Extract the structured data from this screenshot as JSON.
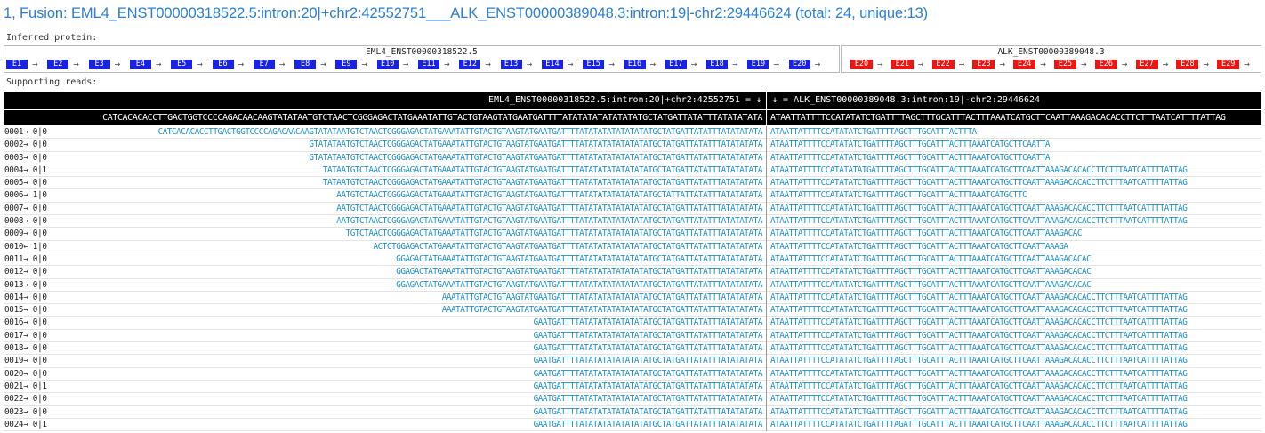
{
  "title": "1, Fusion: EML4_ENST00000318522.5:intron:20|+chr2:42552751___ALK_ENST00000389048.3:intron:19|-chr2:29446624 (total: 24, unique:13)",
  "inferred_label": "Inferred protein:",
  "supporting_label": "Supporting reads:",
  "gene_left": {
    "name": "EML4_ENST00000318522.5",
    "exons": [
      "E1",
      "E2",
      "E3",
      "E4",
      "E5",
      "E6",
      "E7",
      "E8",
      "E9",
      "E10",
      "E11",
      "E12",
      "E13",
      "E14",
      "E15",
      "E16",
      "E17",
      "E18",
      "E19",
      "E20"
    ],
    "color": "#1a22e6"
  },
  "gene_right": {
    "name": "ALK_ENST00000389048.3",
    "exons": [
      "E20",
      "E21",
      "E22",
      "E23",
      "E24",
      "E25",
      "E26",
      "E27",
      "E28",
      "E29"
    ],
    "color": "#ee1515"
  },
  "arrow_glyph": "→",
  "breakpoint_left": "EML4_ENST00000318522.5:intron:20|+chr2:42552751 = ↓",
  "breakpoint_right": "↓ = ALK_ENST00000389048.3:intron:19|-chr2:29446624",
  "ref_left": "CATCACACACCTTGACTGGTCCCCAGACAACAAGTATATAATGTCTAACTCGGGAGACTATGAAATATTGTACTGTAAGTATGAATGATTTTATATATATATATATATGCTATGATTATATTTATATATATA",
  "ref_right": "ATAATTATTTTCCATATATCTGATTTTAGCTTTGCATTTACTTTAAATCATGCTTCAATTAAAGACACACCTTCTTTAATCATTTTATTAG",
  "reads": [
    {
      "id": "0001→ 0|0",
      "left": "CATCACACACCTTGACTGGTCCCCAGACAACAAGTATATAATGTCTAACTCGGGAGACTATGAAATATTGTACTGTAAGTATGAATGATTTTATATATATATATATATGCTATGATTATATTTATATATATA",
      "right": "ATAATTATTTTCCATATATCTGATTTTAGCTTTGCATTTACTTTA"
    },
    {
      "id": "0002→ 0|0",
      "left": "GTATATAATGTCTAACTCGGGAGACTATGAAATATTGTACTGTAAGTATGAATGATTTTATATATATATATATATGCTATGATTATATTTATATATATA",
      "right": "ATAATTATTTTCCATATATCTGATTTTAGCTTTGCATTTACTTTAAATCATGCTTCAATTA"
    },
    {
      "id": "0003→ 0|0",
      "left": "GTATATAATGTCTAACTCGGGAGACTATGAAATATTGTACTGTAAGTATGAATGATTTTATATATATATATATATGCTATGATTATATTTATATATATA",
      "right": "ATAATTATTTTCCATATATCTGATTTTAGCTTTGCATTTACTTTAAATCATGCTTCAATTA"
    },
    {
      "id": "0004→ 0|1",
      "left": "TATAATGTCTAACTCGGGAGACTATGAAATATTGTACTGTAAGTATGAATGATTTTATATATATATATATATGCTATGATTATATTTATATATATA",
      "right": "ATAATTATTTTCCATATATATGATTTTAGCTTTGCATTTACTTTAAATCATGCTTCAATTAAAGACACACCTTCTTTAATCATTTTATTAG"
    },
    {
      "id": "0005→ 0|0",
      "left": "TATAATGTCTAACTCGGGAGACTATGAAATATTGTACTGTAAGTATGAATGATTTTATATATATATATATATGCTATGATTATATTTATATATATA",
      "right": "ATAATTATTTTCCATATATCTGATTTTAGCTTTGCATTTACTTTAAATCATGCTTCAATTAAAGACACACCTTCTTTAATCATTTTATTAG"
    },
    {
      "id": "0006→ 1|0",
      "left": "AATGTCTAACTCGGGAGACTATGAAATATTGTACTGTAAGTATGAATGATTTTATATATATATATATATGCTATTATTATATTTATATATATA",
      "right": "ATAATTATTTTCCATATATCTGATTTTAGCTTTGCATTTACTTTAAATCATGCTTC"
    },
    {
      "id": "0007→ 0|0",
      "left": "AATGTCTAACTCGGGAGACTATGAAATATTGTACTGTAAGTATGAATGATTTTATATATATATATATATGCTATGATTATATTTATATATATA",
      "right": "ATAATTATTTTCCATATATCTGATTTTAGCTTTGCATTTACTTTAAATCATGCTTCAATTAAAGACACACCTTCTTTAATCATTTTATTAG"
    },
    {
      "id": "0008→ 0|0",
      "left": "AATGTCTAACTCGGGAGACTATGAAATATTGTACTGTAAGTATGAATGATTTTATATATATATATATATGCTATGATTATATTTATATATATA",
      "right": "ATAATTATTTTCCATATATCTGATTTTAGCTTTGCATTTACTTTAAATCATGCTTCAATTAAAGACACACCTTCTTTAATCATTTTATTAG"
    },
    {
      "id": "0009→ 0|0",
      "left": "TGTCTAACTCGGGAGACTATGAAATATTGTACTGTAAGTATGAATGATTTTATATATATATATATATGCTATGATTATATTTATATATATA",
      "right": "ATAATTATTTTCCATATATCTGATTTTAGCTTTGCATTTACTTTAAATCATGCTTCAATTAAAGACAC"
    },
    {
      "id": "0010← 1|0",
      "left": "ACTCTGGAGACTATGAAATATTGTACTGTAAGTATGAATGATTTTATATATATATATATATGCTATGATTATATTTATATATATA",
      "right": "ATAATTATTTTCCATATATCTGATTTTAGCTTTGCATTTACTTTAAATCATGCTTCAATTAAAGA"
    },
    {
      "id": "0011→ 0|0",
      "left": "GGAGACTATGAAATATTGTACTGTAAGTATGAATGATTTTATATATATATATATATGCTATGATTATATTTATATATATA",
      "right": "ATAATTATTTTCCATATATCTGATTTTAGCTTTGCATTTACTTTAAATCATGCTTCAATTAAAGACACAC"
    },
    {
      "id": "0012→ 0|0",
      "left": "GGAGACTATGAAATATTGTACTGTAAGTATGAATGATTTTATATATATATATATATGCTATGATTATATTTATATATATA",
      "right": "ATAATTATTTTCCATATATCTGATTTTAGCTTTGCATTTACTTTAAATCATGCTTCAATTAAAGACACAC"
    },
    {
      "id": "0013→ 0|0",
      "left": "GGAGACTATGAAATATTGTACTGTAAGTATGAATGATTTTATATATATATATATATGCTATGATTATATTTATATATATA",
      "right": "ATAATTATTTTCCATATATCTGATTTTAGCTTTGCATTTACTTTAAATCATGCTTCAATTAAAGACACAC"
    },
    {
      "id": "0014→ 0|0",
      "left": "AAATATTGTACTGTAAGTATGAATGATTTTATATATATATATATATGCTATGATTATATTTATATATATA",
      "right": "ATAATTATTTTCCATATATCTGATTTTAGCTTTGCATTTACTTTAAATCATGCTTCAATTAAAGACACACCTTCTTTAATCATTTTATTAG"
    },
    {
      "id": "0015→ 0|0",
      "left": "AAATATTGTACTGTAAGTATGAATGATTTTATATATATATATATATGCTATGATTATATTTATATATATA",
      "right": "ATAATTATTTTCCATATATCTGATTTTAGCTTTGCATTTACTTTAAATCATGCTTCAATTAAAGACACACCTTCTTTAATCATTTTATTAG"
    },
    {
      "id": "0016→ 0|0",
      "left": "GAATGATTTTATATATATATATATATGCTATGATTATATTTATATATATA",
      "right": "ATAATTATTTTCCATATATCTGATTTTAGCTTTGCATTTACTTTAAATCATGCTTCAATTAAAGACACACCTTCTTTAATCATTTTATTAG"
    },
    {
      "id": "0017→ 0|0",
      "left": "GAATGATTTTATATATATATATATATGCTATGATTATATTTATATATATA",
      "right": "ATAATTATTTTCCATATATCTGATTTTAGCTTTGCATTTACTTTAAATCATGCTTCAATTAAAGACACACCTTCTTTAATCATTTTATTAG"
    },
    {
      "id": "0018→ 0|0",
      "left": "GAATGATTTTATATATATATATATATGCTATGATTATATTTATATATATA",
      "right": "ATAATTATTTTCCATATATCTGATTTTAGCTTTGCATTTACTTTAAATCATGCTTCAATTAAAGACACACCTTCTTTAATCATTTTATTAG"
    },
    {
      "id": "0019→ 0|0",
      "left": "GAATGATTTTATATATATATATATATGCTATGATTATATTTATATATATA",
      "right": "ATAATTATTTTCCATATATCTGATTTTAGCTTTGCATTTACTTTAAATCATGCTTCAATTAAAGACACACCTTCTTTAATCATTTTATTAG"
    },
    {
      "id": "0020→ 0|0",
      "left": "GAATGATTTTATATATATATATATATGCTATGATTATATTTATATATATA",
      "right": "ATAATTATTTTCCATATATCTGATTTTAGCTTTGCATTTACTTTAAATCATGCTTCAATTAAAGACACACCTTCTTTAATCATTTTATTAG"
    },
    {
      "id": "0021→ 0|1",
      "left": "GAATGATTTTATATATATATATATATGCTATGATTATATTTATATATATA",
      "right": "ATAATTATTTTCCATATATCTGATTTTAGCTTTGCATTTACTTTAAATCATGCTTCAATTAAAGACACACCTTCTTTAATCATTTTATTAG"
    },
    {
      "id": "0022→ 0|0",
      "left": "GAATGATTTTATATATATATATATATGCTATGATTATATTTATATATATA",
      "right": "ATAATTATTTTCCATATATCTGATTTTAGCTTTGCATTTACTTTAAATCATGCTTCAATTAAAGACACACCTTCTTTAATCATTTTATTAG"
    },
    {
      "id": "0023→ 0|0",
      "left": "GAATGATTTTATATATATATATATATGCTATGATTATATTTATATATATA",
      "right": "ATAATTATTTTCCATATATCTGATTTTAGCTTTGCATTTACTTTAAATCATGCTTCAATTAAAGACACACCTTCTTTAATCATTTTATTAG"
    },
    {
      "id": "0024→ 0|1",
      "left": "GAATGATTTTATATATATATATATATGCTATGATTATATTTATATATATA",
      "right": "ATAATTATTTTCCATATATCTGATTTTAGATTTGCATTTACTTTAAATCATGCTTCAATTAAAGACACACCTTCTTTAATCATTTTATTAG"
    }
  ]
}
